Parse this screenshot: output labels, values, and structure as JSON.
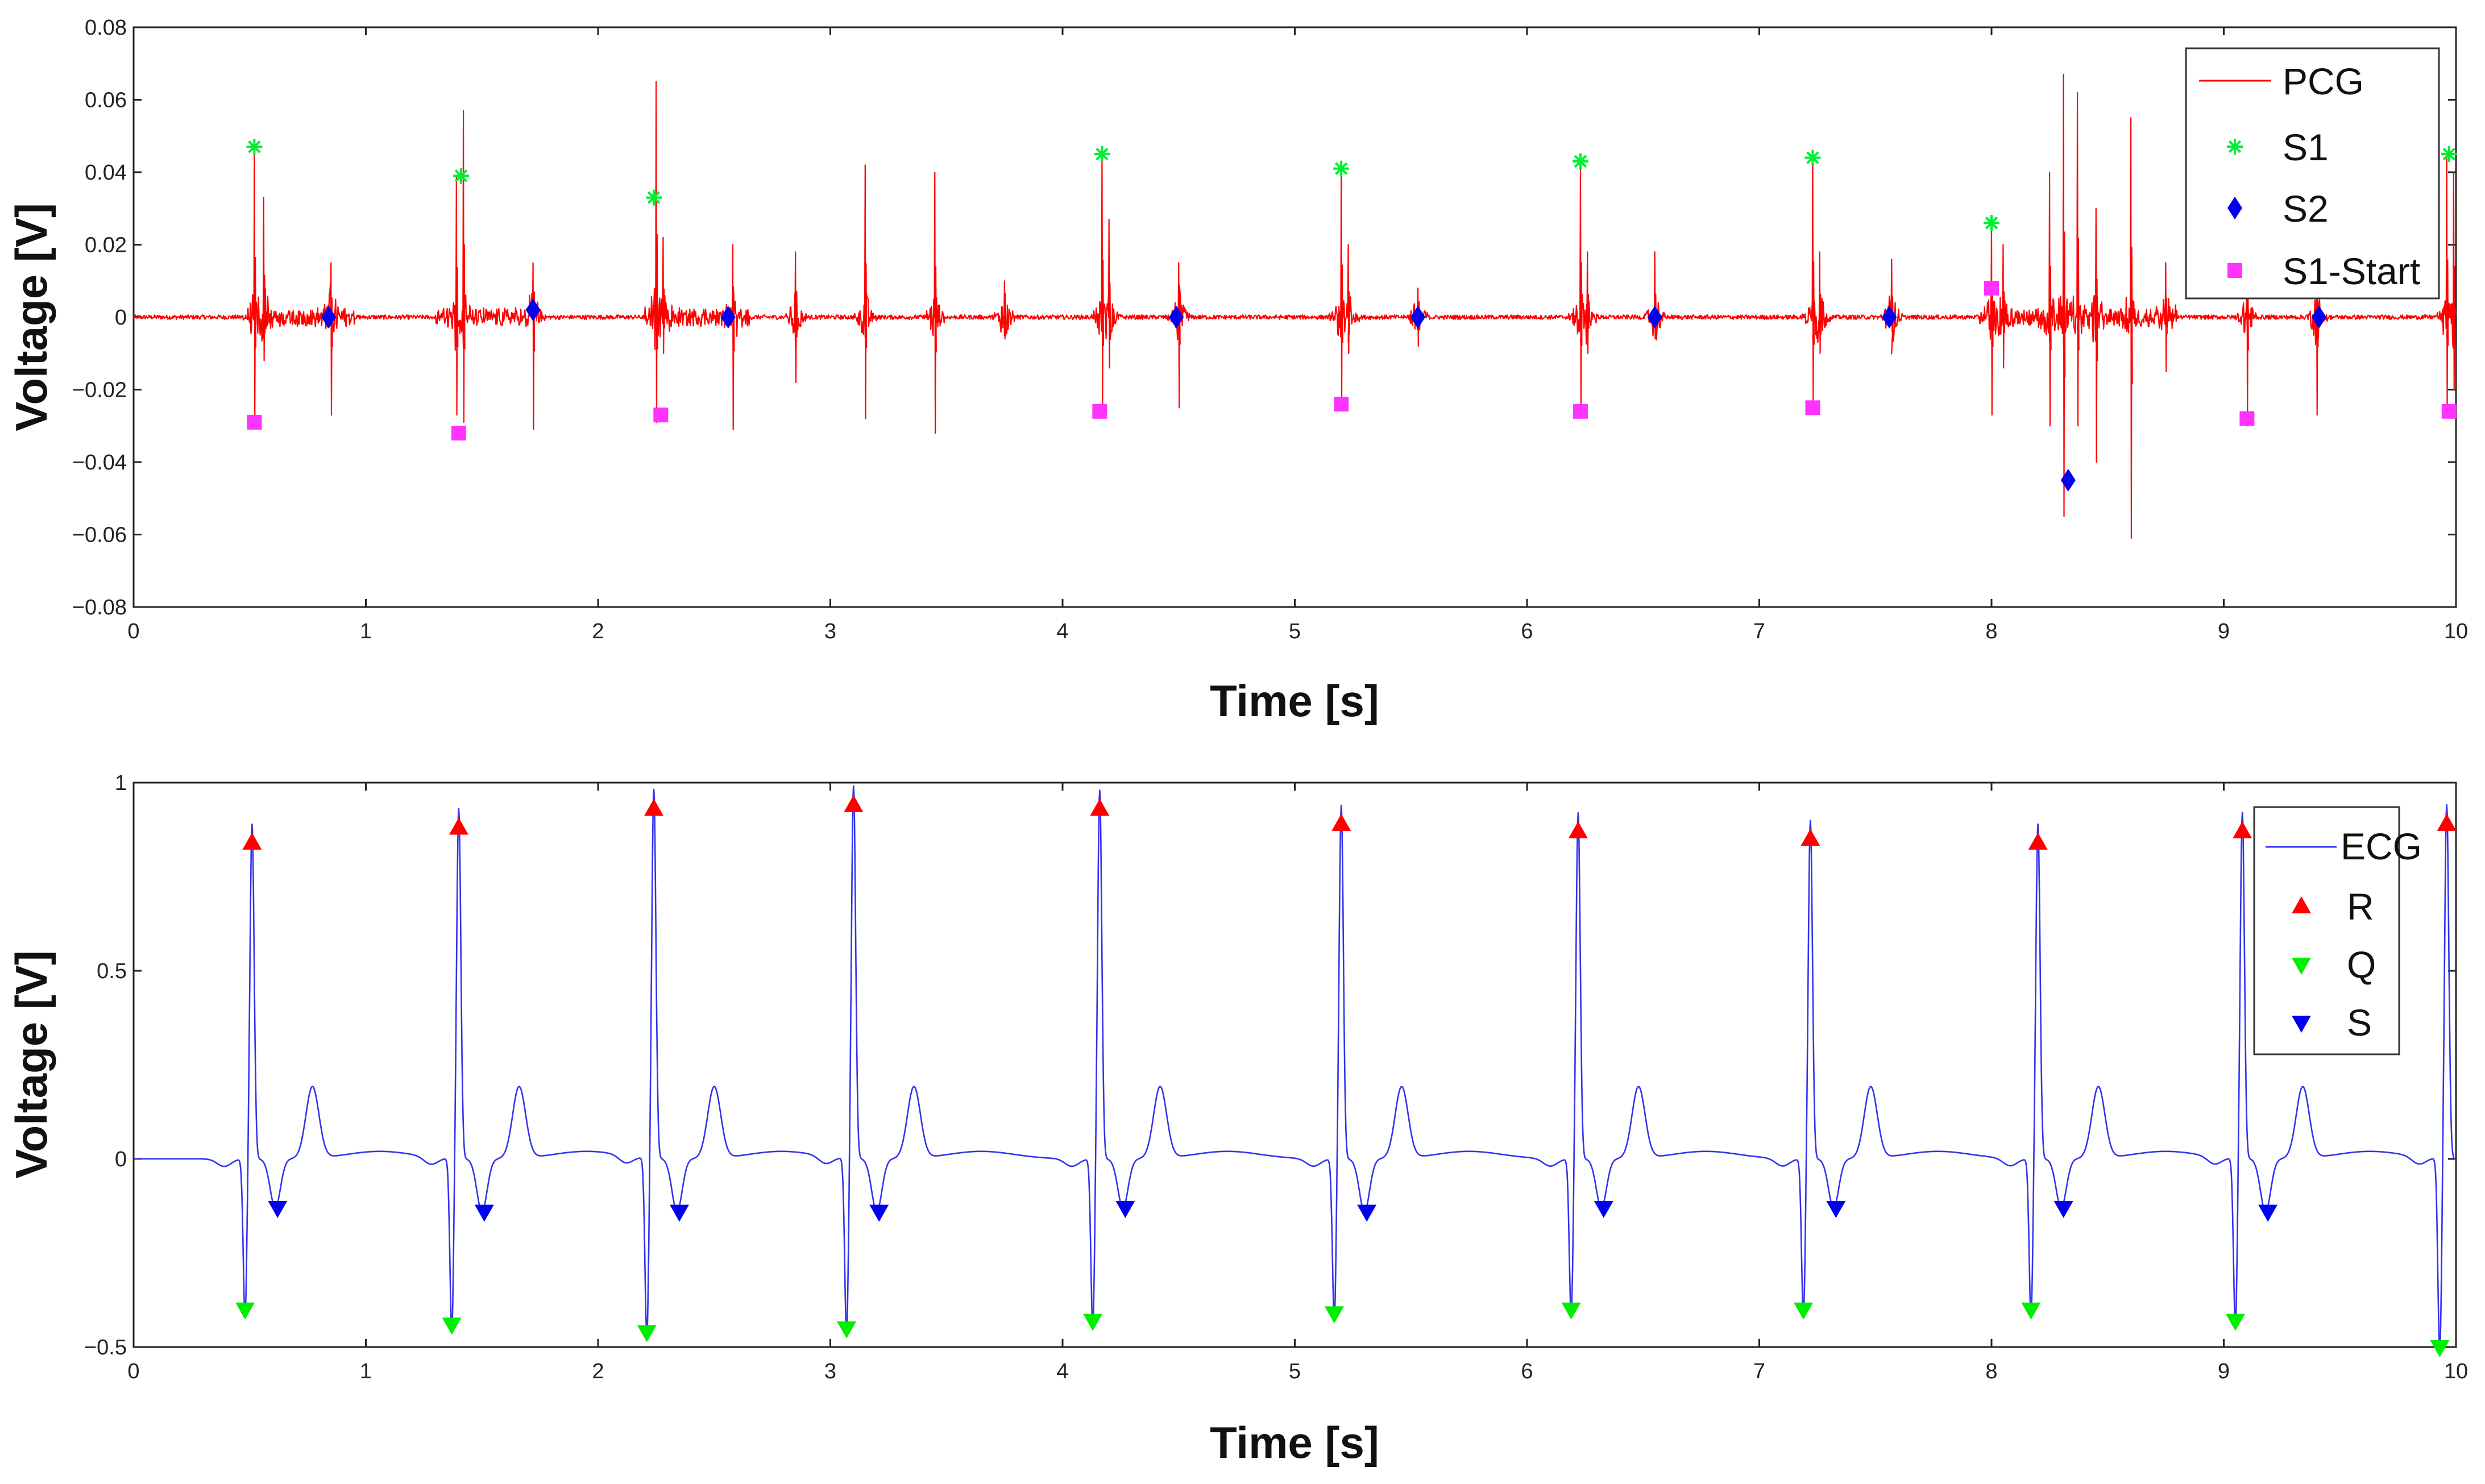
{
  "chart_data": [
    {
      "type": "line",
      "id": "pcg",
      "title": "",
      "xlabel": "Time [s]",
      "ylabel": "Voltage [V]",
      "xlim": [
        0,
        10
      ],
      "ylim": [
        -0.08,
        0.08
      ],
      "xticks": [
        0,
        1,
        2,
        3,
        4,
        5,
        6,
        7,
        8,
        9,
        10
      ],
      "xtick_labels": [
        "0",
        "1",
        "2",
        "3",
        "4",
        "5",
        "6",
        "7",
        "8",
        "9",
        "10"
      ],
      "yticks": [
        -0.08,
        -0.06,
        -0.04,
        -0.02,
        0,
        0.02,
        0.04,
        0.06,
        0.08
      ],
      "ytick_labels": [
        "−0.08",
        "−0.06",
        "−0.04",
        "−0.02",
        "0",
        "0.02",
        "0.04",
        "0.06",
        "0.08"
      ],
      "grid": false,
      "legend_position": "top-right",
      "signal": {
        "name": "PCG",
        "color": "#ff0000",
        "bursts": [
          {
            "t": 0.52,
            "pos": 0.047,
            "neg": -0.028
          },
          {
            "t": 0.56,
            "pos": 0.033,
            "neg": -0.012
          },
          {
            "t": 0.85,
            "pos": 0.015,
            "neg": -0.027
          },
          {
            "t": 1.39,
            "pos": 0.039,
            "neg": -0.027
          },
          {
            "t": 1.42,
            "pos": 0.057,
            "neg": -0.029
          },
          {
            "t": 1.72,
            "pos": 0.015,
            "neg": -0.031
          },
          {
            "t": 2.25,
            "pos": 0.065,
            "neg": -0.029
          },
          {
            "t": 2.28,
            "pos": 0.022,
            "neg": -0.01
          },
          {
            "t": 2.58,
            "pos": 0.02,
            "neg": -0.031
          },
          {
            "t": 2.85,
            "pos": 0.018,
            "neg": -0.018
          },
          {
            "t": 3.15,
            "pos": 0.042,
            "neg": -0.028
          },
          {
            "t": 3.45,
            "pos": 0.04,
            "neg": -0.032
          },
          {
            "t": 3.75,
            "pos": 0.01,
            "neg": -0.006
          },
          {
            "t": 4.17,
            "pos": 0.045,
            "neg": -0.026
          },
          {
            "t": 4.2,
            "pos": 0.027,
            "neg": -0.014
          },
          {
            "t": 4.5,
            "pos": 0.015,
            "neg": -0.025
          },
          {
            "t": 5.2,
            "pos": 0.041,
            "neg": -0.023
          },
          {
            "t": 5.23,
            "pos": 0.02,
            "neg": -0.01
          },
          {
            "t": 5.53,
            "pos": 0.008,
            "neg": -0.008
          },
          {
            "t": 6.23,
            "pos": 0.043,
            "neg": -0.026
          },
          {
            "t": 6.26,
            "pos": 0.018,
            "neg": -0.01
          },
          {
            "t": 6.55,
            "pos": 0.018,
            "neg": -0.006
          },
          {
            "t": 7.23,
            "pos": 0.044,
            "neg": -0.025
          },
          {
            "t": 7.26,
            "pos": 0.018,
            "neg": -0.01
          },
          {
            "t": 7.57,
            "pos": 0.016,
            "neg": -0.004
          },
          {
            "t": 8.0,
            "pos": 0.026,
            "neg": -0.027
          },
          {
            "t": 8.05,
            "pos": 0.02,
            "neg": -0.014
          },
          {
            "t": 8.25,
            "pos": 0.04,
            "neg": -0.03
          },
          {
            "t": 8.31,
            "pos": 0.067,
            "neg": -0.055
          },
          {
            "t": 8.37,
            "pos": 0.062,
            "neg": -0.03
          },
          {
            "t": 8.45,
            "pos": 0.03,
            "neg": -0.04
          },
          {
            "t": 8.6,
            "pos": 0.055,
            "neg": -0.061
          },
          {
            "t": 8.75,
            "pos": 0.015,
            "neg": -0.015
          },
          {
            "t": 9.1,
            "pos": 0.03,
            "neg": -0.03
          },
          {
            "t": 9.4,
            "pos": 0.015,
            "neg": -0.027
          },
          {
            "t": 9.96,
            "pos": 0.045,
            "neg": -0.026
          },
          {
            "t": 9.99,
            "pos": 0.04,
            "neg": -0.02
          }
        ]
      },
      "markers": [
        {
          "name": "S1",
          "color": "#00ee33",
          "shape": "asterisk",
          "x": [
            0.52,
            1.41,
            2.24,
            4.17,
            5.2,
            6.23,
            7.23,
            8.0,
            9.97
          ],
          "y": [
            0.047,
            0.039,
            0.033,
            0.045,
            0.041,
            0.043,
            0.044,
            0.026,
            0.045
          ]
        },
        {
          "name": "S2",
          "color": "#0000ee",
          "shape": "diamond",
          "x": [
            0.84,
            1.72,
            2.56,
            4.49,
            5.53,
            6.55,
            7.56,
            8.33,
            9.41
          ],
          "y": [
            0.0,
            0.002,
            0.0,
            0.0,
            0.0,
            0.0,
            0.0,
            -0.045,
            0.0
          ]
        },
        {
          "name": "S1-Start",
          "color": "#ff33ff",
          "shape": "square",
          "x": [
            0.52,
            1.4,
            2.27,
            4.16,
            5.2,
            6.23,
            7.23,
            8.0,
            9.1,
            9.97
          ],
          "y": [
            -0.029,
            -0.032,
            -0.027,
            -0.026,
            -0.024,
            -0.026,
            -0.025,
            0.008,
            -0.028,
            -0.026
          ]
        }
      ],
      "legend": [
        "PCG",
        "S1",
        "S2",
        "S1-Start"
      ]
    },
    {
      "type": "line",
      "id": "ecg",
      "title": "",
      "xlabel": "Time [s]",
      "ylabel": "Voltage [V]",
      "xlim": [
        0,
        10
      ],
      "ylim": [
        -0.5,
        1
      ],
      "xticks": [
        0,
        1,
        2,
        3,
        4,
        5,
        6,
        7,
        8,
        9,
        10
      ],
      "xtick_labels": [
        "0",
        "1",
        "2",
        "3",
        "4",
        "5",
        "6",
        "7",
        "8",
        "9",
        "10"
      ],
      "yticks": [
        -0.5,
        0,
        0.5,
        1
      ],
      "ytick_labels": [
        "−0.5",
        "0",
        "0.5",
        "1"
      ],
      "grid": false,
      "legend_position": "top-right",
      "signal": {
        "name": "ECG",
        "color": "#3333ee",
        "r_times": [
          0.51,
          1.4,
          2.24,
          3.1,
          4.16,
          5.2,
          6.22,
          7.22,
          8.2,
          9.08,
          9.96
        ]
      },
      "markers": [
        {
          "name": "R",
          "color": "#ff0000",
          "shape": "triangle-up",
          "x": [
            0.51,
            1.4,
            2.24,
            3.1,
            4.16,
            5.2,
            6.22,
            7.22,
            8.2,
            9.08,
            9.96
          ],
          "y": [
            0.84,
            0.88,
            0.93,
            0.94,
            0.93,
            0.89,
            0.87,
            0.85,
            0.84,
            0.87,
            0.89
          ]
        },
        {
          "name": "Q",
          "color": "#00ee00",
          "shape": "triangle-down",
          "x": [
            0.48,
            1.37,
            2.21,
            3.07,
            4.13,
            5.17,
            6.19,
            7.19,
            8.17,
            9.05,
            9.93
          ],
          "y": [
            -0.4,
            -0.44,
            -0.46,
            -0.45,
            -0.43,
            -0.41,
            -0.4,
            -0.4,
            -0.4,
            -0.43,
            -0.5
          ]
        },
        {
          "name": "S",
          "color": "#0000ee",
          "shape": "triangle-down",
          "x": [
            0.62,
            1.51,
            2.35,
            3.21,
            4.27,
            5.31,
            6.33,
            7.33,
            8.31,
            9.19
          ],
          "y": [
            -0.13,
            -0.14,
            -0.14,
            -0.14,
            -0.13,
            -0.14,
            -0.13,
            -0.13,
            -0.13,
            -0.14
          ]
        }
      ],
      "legend": [
        "ECG",
        "R",
        "Q",
        "S"
      ]
    }
  ]
}
